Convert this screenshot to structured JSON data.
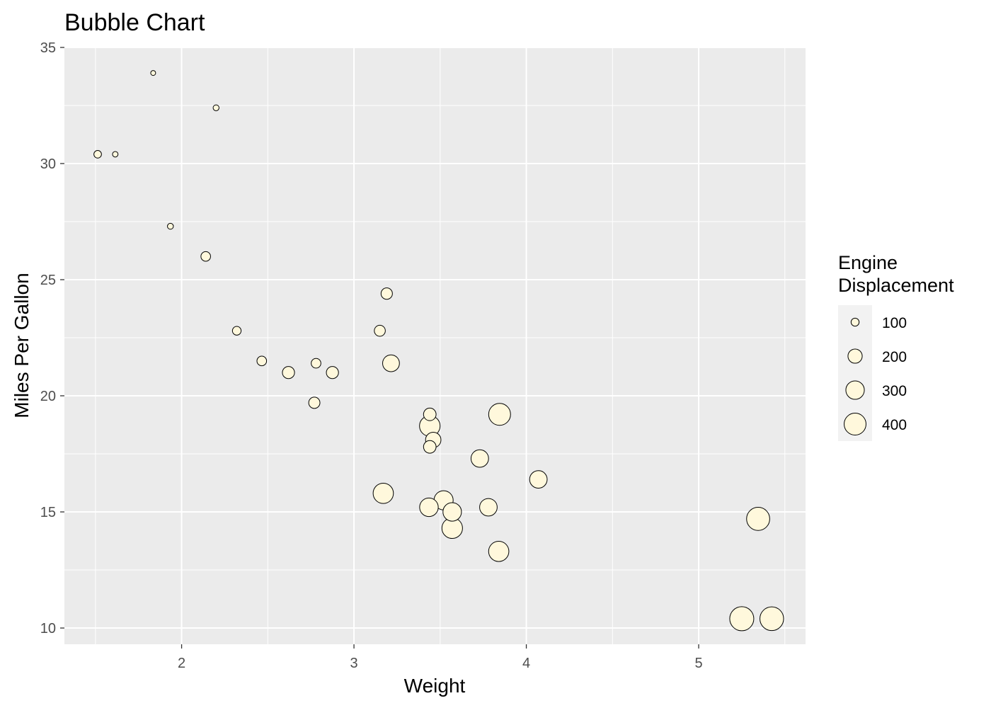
{
  "chart_data": {
    "type": "scatter",
    "variant": "bubble",
    "title": "Bubble Chart",
    "xlabel": "Weight",
    "ylabel": "Miles Per Gallon",
    "xlim": [
      1.32,
      5.62
    ],
    "ylim": [
      9.3,
      35.0
    ],
    "x_ticks": [
      2,
      3,
      4,
      5
    ],
    "y_ticks": [
      10,
      15,
      20,
      25,
      30,
      35
    ],
    "grid": true,
    "background": "#ebebeb",
    "grid_color": "#ffffff",
    "point_fill": "#fff8dc",
    "point_stroke": "#000000",
    "size_range_disp": [
      71.1,
      472.0
    ],
    "legend": {
      "title_lines": [
        "Engine",
        "Displacement"
      ],
      "position": "right",
      "entries": [
        {
          "label": "100",
          "value": 100
        },
        {
          "label": "200",
          "value": 200
        },
        {
          "label": "300",
          "value": 300
        },
        {
          "label": "400",
          "value": 400
        }
      ]
    },
    "points": [
      {
        "x": 2.62,
        "y": 21.0,
        "disp": 160.0
      },
      {
        "x": 2.875,
        "y": 21.0,
        "disp": 160.0
      },
      {
        "x": 2.32,
        "y": 22.8,
        "disp": 108.0
      },
      {
        "x": 3.215,
        "y": 21.4,
        "disp": 258.0
      },
      {
        "x": 3.44,
        "y": 18.7,
        "disp": 360.0
      },
      {
        "x": 3.46,
        "y": 18.1,
        "disp": 225.0
      },
      {
        "x": 3.57,
        "y": 14.3,
        "disp": 360.0
      },
      {
        "x": 3.19,
        "y": 24.4,
        "disp": 146.7
      },
      {
        "x": 3.15,
        "y": 22.8,
        "disp": 140.8
      },
      {
        "x": 3.44,
        "y": 19.2,
        "disp": 167.6
      },
      {
        "x": 3.44,
        "y": 17.8,
        "disp": 167.6
      },
      {
        "x": 4.07,
        "y": 16.4,
        "disp": 275.8
      },
      {
        "x": 3.73,
        "y": 17.3,
        "disp": 275.8
      },
      {
        "x": 3.78,
        "y": 15.2,
        "disp": 275.8
      },
      {
        "x": 5.25,
        "y": 10.4,
        "disp": 472.0
      },
      {
        "x": 5.424,
        "y": 10.4,
        "disp": 460.0
      },
      {
        "x": 5.345,
        "y": 14.7,
        "disp": 440.0
      },
      {
        "x": 2.2,
        "y": 32.4,
        "disp": 78.7
      },
      {
        "x": 1.615,
        "y": 30.4,
        "disp": 75.7
      },
      {
        "x": 1.835,
        "y": 33.9,
        "disp": 71.1
      },
      {
        "x": 2.465,
        "y": 21.5,
        "disp": 120.1
      },
      {
        "x": 3.52,
        "y": 15.5,
        "disp": 318.0
      },
      {
        "x": 3.435,
        "y": 15.2,
        "disp": 304.0
      },
      {
        "x": 3.84,
        "y": 13.3,
        "disp": 350.0
      },
      {
        "x": 3.845,
        "y": 19.2,
        "disp": 400.0
      },
      {
        "x": 1.935,
        "y": 27.3,
        "disp": 79.0
      },
      {
        "x": 2.14,
        "y": 26.0,
        "disp": 120.3
      },
      {
        "x": 1.513,
        "y": 30.4,
        "disp": 95.1
      },
      {
        "x": 3.17,
        "y": 15.8,
        "disp": 351.0
      },
      {
        "x": 2.77,
        "y": 19.7,
        "disp": 145.0
      },
      {
        "x": 3.57,
        "y": 15.0,
        "disp": 301.0
      },
      {
        "x": 2.78,
        "y": 21.4,
        "disp": 121.0
      }
    ]
  }
}
